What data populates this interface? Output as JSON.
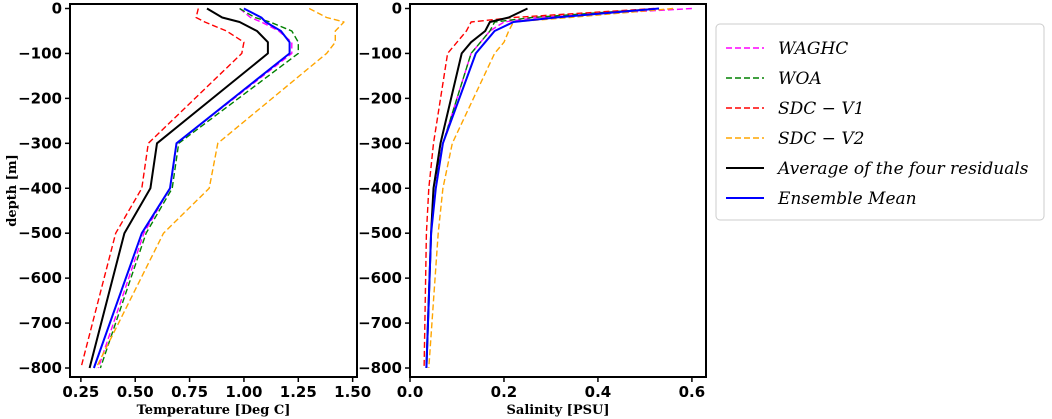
{
  "legend": {
    "placement": "right",
    "entries": [
      {
        "key": "waghc",
        "label": "WAGHC",
        "color": "#ff00ff",
        "dash": true
      },
      {
        "key": "woa",
        "label": "WOA",
        "color": "#008000",
        "dash": true
      },
      {
        "key": "sdcv1",
        "label": "SDC − V1",
        "color": "#ff0000",
        "dash": true
      },
      {
        "key": "sdcv2",
        "label": "SDC − V2",
        "color": "#ffa500",
        "dash": true
      },
      {
        "key": "avg4",
        "label": "Average of the four residuals",
        "color": "#000000",
        "dash": false
      },
      {
        "key": "ens",
        "label": "Ensemble Mean",
        "color": "#0000ff",
        "dash": false
      }
    ]
  },
  "chart_data": [
    {
      "type": "line",
      "xlabel": "Temperature [Deg C]",
      "ylabel": "depth [m]",
      "xlim": [
        0.2,
        1.52
      ],
      "ylim": [
        -820,
        10
      ],
      "xticks": [
        "0.25",
        "0.50",
        "0.75",
        "1.00",
        "1.25",
        "1.50"
      ],
      "xtick_values": [
        0.25,
        0.5,
        0.75,
        1.0,
        1.25,
        1.5
      ],
      "yticks": [
        "0",
        "−100",
        "−200",
        "−300",
        "−400",
        "−500",
        "−600",
        "−700",
        "−800"
      ],
      "ytick_values": [
        0,
        -100,
        -200,
        -300,
        -400,
        -500,
        -600,
        -700,
        -800
      ],
      "grid": false,
      "series": [
        {
          "key": "waghc",
          "x": [
            0.98,
            1.03,
            1.08,
            1.16,
            1.22,
            1.22,
            0.69,
            0.66,
            0.54,
            0.33
          ],
          "y": [
            0,
            -20,
            -30,
            -50,
            -75,
            -100,
            -300,
            -400,
            -500,
            -800
          ]
        },
        {
          "key": "woa",
          "x": [
            0.98,
            1.05,
            1.12,
            1.22,
            1.25,
            1.25,
            0.7,
            0.67,
            0.55,
            0.34
          ],
          "y": [
            0,
            -20,
            -30,
            -50,
            -75,
            -100,
            -300,
            -400,
            -500,
            -800
          ]
        },
        {
          "key": "sdcv1",
          "x": [
            0.79,
            0.78,
            0.82,
            0.92,
            1.0,
            0.99,
            0.56,
            0.53,
            0.41,
            0.25
          ],
          "y": [
            0,
            -20,
            -30,
            -50,
            -75,
            -100,
            -300,
            -400,
            -500,
            -800
          ]
        },
        {
          "key": "sdcv2",
          "x": [
            1.3,
            1.38,
            1.46,
            1.42,
            1.42,
            1.38,
            0.88,
            0.84,
            0.63,
            0.32
          ],
          "y": [
            0,
            -20,
            -30,
            -50,
            -75,
            -100,
            -300,
            -400,
            -500,
            -800
          ]
        },
        {
          "key": "avg4",
          "x": [
            0.83,
            0.9,
            0.98,
            1.06,
            1.11,
            1.11,
            0.6,
            0.57,
            0.45,
            0.29
          ],
          "y": [
            0,
            -20,
            -30,
            -50,
            -75,
            -100,
            -300,
            -400,
            -500,
            -800
          ]
        },
        {
          "key": "ens",
          "x": [
            1.0,
            1.08,
            1.1,
            1.17,
            1.21,
            1.21,
            0.69,
            0.66,
            0.53,
            0.31
          ],
          "y": [
            0,
            -20,
            -30,
            -50,
            -75,
            -100,
            -300,
            -400,
            -500,
            -800
          ]
        }
      ]
    },
    {
      "type": "line",
      "xlabel": "Salinity [PSU]",
      "ylabel": "",
      "xlim": [
        0.0,
        0.63
      ],
      "ylim": [
        -820,
        10
      ],
      "xticks": [
        "0.0",
        "0.2",
        "0.4",
        "0.6"
      ],
      "xtick_values": [
        0.0,
        0.2,
        0.4,
        0.6
      ],
      "yticks": [
        "0",
        "−100",
        "−200",
        "−300",
        "−400",
        "−500",
        "−600",
        "−700",
        "−800"
      ],
      "ytick_values": [
        0,
        -100,
        -200,
        -300,
        -400,
        -500,
        -600,
        -700,
        -800
      ],
      "grid": false,
      "series": [
        {
          "key": "waghc",
          "x": [
            0.6,
            0.27,
            0.2,
            0.17,
            0.15,
            0.13,
            0.07,
            0.05,
            0.045,
            0.035
          ],
          "y": [
            0,
            -20,
            -30,
            -50,
            -75,
            -100,
            -300,
            -400,
            -500,
            -800
          ]
        },
        {
          "key": "woa",
          "x": [
            0.53,
            0.26,
            0.18,
            0.17,
            0.15,
            0.13,
            0.07,
            0.05,
            0.045,
            0.035
          ],
          "y": [
            0,
            -20,
            -30,
            -50,
            -75,
            -100,
            -300,
            -400,
            -500,
            -800
          ]
        },
        {
          "key": "sdcv1",
          "x": [
            0.52,
            0.22,
            0.13,
            0.12,
            0.1,
            0.08,
            0.05,
            0.04,
            0.035,
            0.03
          ],
          "y": [
            0,
            -20,
            -30,
            -50,
            -75,
            -100,
            -300,
            -400,
            -500,
            -800
          ]
        },
        {
          "key": "sdcv2",
          "x": [
            0.56,
            0.34,
            0.22,
            0.21,
            0.2,
            0.18,
            0.09,
            0.07,
            0.06,
            0.04
          ],
          "y": [
            0,
            -20,
            -30,
            -50,
            -75,
            -100,
            -300,
            -400,
            -500,
            -800
          ]
        },
        {
          "key": "avg4",
          "x": [
            0.25,
            0.21,
            0.17,
            0.16,
            0.13,
            0.11,
            0.065,
            0.05,
            0.045,
            0.035
          ],
          "y": [
            0,
            -20,
            -30,
            -50,
            -75,
            -100,
            -300,
            -400,
            -500,
            -800
          ]
        },
        {
          "key": "ens",
          "x": [
            0.53,
            0.31,
            0.22,
            0.18,
            0.16,
            0.14,
            0.07,
            0.055,
            0.045,
            0.035
          ],
          "y": [
            0,
            -20,
            -30,
            -50,
            -75,
            -100,
            -300,
            -400,
            -500,
            -800
          ]
        }
      ]
    }
  ]
}
